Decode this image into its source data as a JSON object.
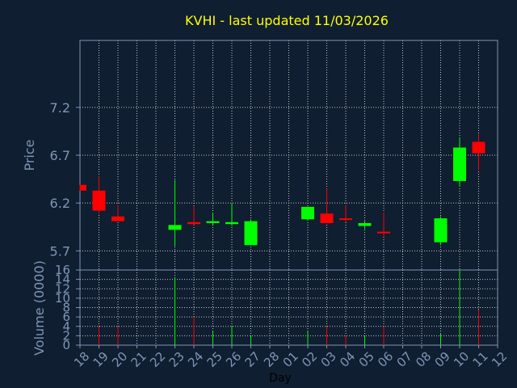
{
  "chart_data": {
    "type": "candlestick",
    "title": "KVHI - last updated 11/03/2026",
    "ylabel": "Price",
    "volume_label": "Volume (0000)",
    "xlabel": "Day",
    "price_ticks": [
      "7.2",
      "6.7",
      "6.2",
      "5.7"
    ],
    "price_tick_values": [
      7.2,
      6.7,
      6.2,
      5.7
    ],
    "ylim": [
      5.5,
      7.9
    ],
    "volume_ticks": [
      "16",
      "14",
      "12",
      "10",
      "8",
      "6",
      "4",
      "2",
      "0"
    ],
    "volume_tick_values": [
      16,
      14,
      12,
      10,
      8,
      6,
      4,
      2,
      0
    ],
    "volume_ylim": [
      0,
      16
    ],
    "x_labels": [
      "18",
      "19",
      "20",
      "21",
      "22",
      "23",
      "24",
      "25",
      "26",
      "27",
      "28",
      "01",
      "02",
      "03",
      "04",
      "05",
      "06",
      "07",
      "08",
      "09",
      "10",
      "11",
      "12"
    ],
    "candles": [
      {
        "day": "18",
        "open": 6.39,
        "high": 6.39,
        "low": 6.33,
        "close": 6.33,
        "volume": 0
      },
      {
        "day": "19",
        "open": 6.33,
        "high": 6.48,
        "low": 6.09,
        "close": 6.12,
        "volume": 4
      },
      {
        "day": "20",
        "open": 6.06,
        "high": 6.18,
        "low": 6.01,
        "close": 6.01,
        "volume": 4
      },
      {
        "day": "23",
        "open": 5.92,
        "high": 6.44,
        "low": 5.75,
        "close": 5.97,
        "volume": 14.5
      },
      {
        "day": "24",
        "open": 6.0,
        "high": 6.16,
        "low": 5.97,
        "close": 5.98,
        "volume": 6
      },
      {
        "day": "25",
        "open": 5.99,
        "high": 6.1,
        "low": 5.97,
        "close": 6.01,
        "volume": 3
      },
      {
        "day": "26",
        "open": 5.98,
        "high": 6.2,
        "low": 5.96,
        "close": 6.0,
        "volume": 4
      },
      {
        "day": "27",
        "open": 5.76,
        "high": 6.03,
        "low": 5.76,
        "close": 6.01,
        "volume": 2
      },
      {
        "day": "02",
        "open": 6.03,
        "high": 6.16,
        "low": 6.02,
        "close": 6.16,
        "volume": 3
      },
      {
        "day": "03",
        "open": 6.09,
        "high": 6.35,
        "low": 5.99,
        "close": 5.99,
        "volume": 4
      },
      {
        "day": "04",
        "open": 6.04,
        "high": 6.18,
        "low": 6.0,
        "close": 6.03,
        "volume": 2
      },
      {
        "day": "05",
        "open": 5.96,
        "high": 6.01,
        "low": 5.93,
        "close": 5.99,
        "volume": 2
      },
      {
        "day": "06",
        "open": 5.9,
        "high": 6.1,
        "low": 5.85,
        "close": 5.89,
        "volume": 4
      },
      {
        "day": "09",
        "open": 5.79,
        "high": 6.06,
        "low": 5.76,
        "close": 6.04,
        "volume": 2.5
      },
      {
        "day": "10",
        "open": 6.43,
        "high": 6.89,
        "low": 6.37,
        "close": 6.78,
        "volume": 16
      },
      {
        "day": "11",
        "open": 6.84,
        "high": 6.92,
        "low": 6.55,
        "close": 6.72,
        "volume": 7.5
      }
    ],
    "colors": {
      "background": "#0f1e30",
      "up": "#00ff00",
      "down": "#ff0000",
      "grid": "#c8c8c8",
      "axis": "#7f95b6",
      "title": "#ffff00"
    }
  }
}
